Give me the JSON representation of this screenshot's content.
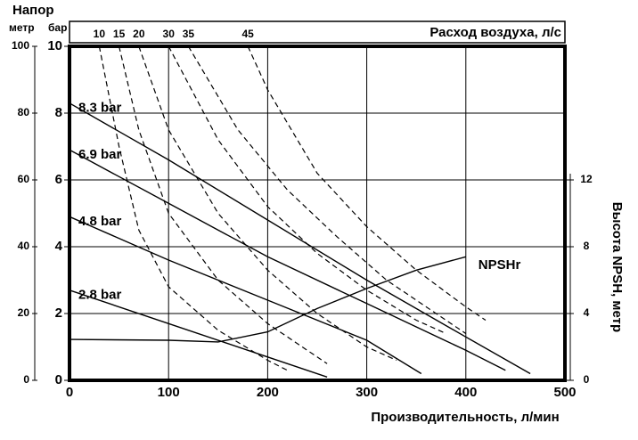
{
  "chart_data": {
    "type": "line",
    "title": "Напор",
    "ylabel": "метр",
    "y3label": "бар",
    "toplabel": "Расход воздуха, л/с",
    "y2label": "Высота NPSH, метр",
    "xlabel": "Производительность, л/мин",
    "xlim": [
      0,
      500
    ],
    "xticks": [
      0,
      100,
      200,
      300,
      400,
      500
    ],
    "ylim": [
      0,
      100
    ],
    "yticks": [
      0,
      20,
      40,
      60,
      80,
      100
    ],
    "y3lim": [
      0,
      10
    ],
    "y3ticks": [
      0,
      2,
      4,
      6,
      8,
      10
    ],
    "y2lim": [
      0,
      20
    ],
    "y2ticks": [
      0,
      4,
      8,
      12
    ],
    "grid": true,
    "series": [
      {
        "name": "8.3 bar",
        "color": "#000000",
        "style": "solid",
        "x": [
          0,
          100,
          200,
          300,
          400,
          465
        ],
        "values": [
          83,
          66,
          48,
          30,
          13,
          2
        ]
      },
      {
        "name": "6.9 bar",
        "color": "#000000",
        "style": "solid",
        "x": [
          0,
          100,
          200,
          300,
          400,
          440
        ],
        "values": [
          69,
          53,
          37,
          23,
          9,
          3
        ]
      },
      {
        "name": "4.8 bar",
        "color": "#000000",
        "style": "solid",
        "x": [
          0,
          100,
          200,
          300,
          355
        ],
        "values": [
          49,
          36,
          24,
          12,
          2
        ]
      },
      {
        "name": "2.8 bar",
        "color": "#000000",
        "style": "solid",
        "x": [
          0,
          100,
          200,
          260
        ],
        "values": [
          27,
          17,
          7,
          1
        ]
      },
      {
        "name": "NPSHr",
        "color": "#000000",
        "style": "solid",
        "axis": "y2",
        "x": [
          0,
          100,
          150,
          200,
          250,
          300,
          350,
          400
        ],
        "values": [
          2.45,
          2.4,
          2.3,
          2.9,
          4.3,
          5.5,
          6.6,
          7.4
        ]
      },
      {
        "name": "10",
        "color": "#000000",
        "style": "dashed",
        "x": [
          30,
          50,
          70,
          100,
          150,
          200,
          220
        ],
        "values": [
          100,
          70,
          45,
          28,
          15,
          6,
          3
        ]
      },
      {
        "name": "15",
        "color": "#000000",
        "style": "dashed",
        "x": [
          50,
          70,
          100,
          150,
          200,
          260
        ],
        "values": [
          100,
          75,
          50,
          30,
          17,
          5
        ]
      },
      {
        "name": "20",
        "color": "#000000",
        "style": "dashed",
        "x": [
          70,
          100,
          150,
          200,
          250,
          300,
          330
        ],
        "values": [
          100,
          75,
          50,
          33,
          20,
          10,
          6
        ]
      },
      {
        "name": "30",
        "color": "#000000",
        "style": "dashed",
        "x": [
          100,
          150,
          200,
          250,
          300,
          350,
          380
        ],
        "values": [
          100,
          72,
          52,
          38,
          27,
          18,
          14
        ]
      },
      {
        "name": "35",
        "color": "#000000",
        "style": "dashed",
        "x": [
          120,
          170,
          220,
          270,
          320,
          370,
          400
        ],
        "values": [
          100,
          75,
          57,
          43,
          30,
          20,
          14
        ]
      },
      {
        "name": "45",
        "color": "#000000",
        "style": "dashed",
        "x": [
          180,
          200,
          250,
          300,
          350,
          400,
          420
        ],
        "values": [
          100,
          87,
          62,
          46,
          33,
          22,
          18
        ]
      }
    ]
  }
}
